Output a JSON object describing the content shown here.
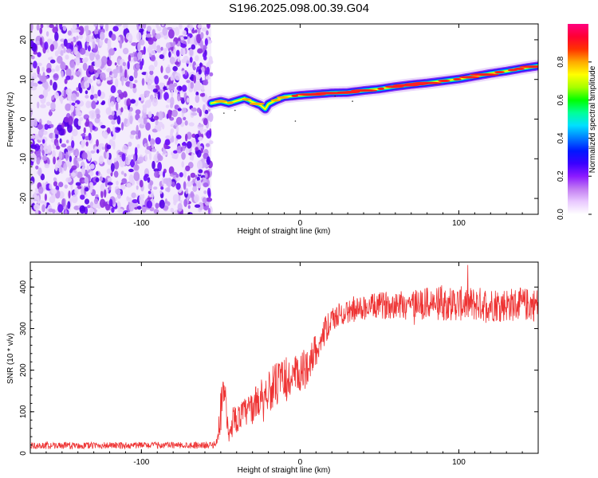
{
  "title": "S196.2025.098.00.39.G04",
  "chart_data": [
    {
      "type": "heatmap",
      "xlabel": "Height of straight line (km)",
      "ylabel": "Frequency (Hz)",
      "xlim": [
        -170,
        150
      ],
      "ylim": [
        -24,
        24
      ],
      "xticks": [
        -100,
        0,
        100
      ],
      "xtick_labels": [
        "-100",
        "0",
        "100"
      ],
      "yticks": [
        -20,
        -10,
        0,
        10,
        20
      ],
      "ytick_labels": [
        "-20",
        "-10",
        "0",
        "10",
        "20"
      ],
      "noise_region_x": [
        -170,
        -56
      ],
      "ridge": {
        "x": [
          -56,
          -50,
          -45,
          -40,
          -35,
          -30,
          -25,
          -22,
          -20,
          -15,
          -10,
          -5,
          0,
          10,
          20,
          30,
          40,
          50,
          60,
          70,
          80,
          90,
          100,
          110,
          120,
          130,
          140,
          150
        ],
        "y": [
          4.0,
          4.5,
          4.0,
          4.6,
          5.2,
          4.3,
          3.5,
          2.5,
          3.8,
          4.8,
          5.6,
          5.8,
          6.0,
          6.3,
          6.6,
          6.7,
          7.2,
          7.6,
          8.2,
          8.7,
          9.1,
          9.6,
          10.1,
          10.8,
          11.5,
          12.1,
          12.8,
          13.4
        ]
      },
      "colorbar": {
        "label": "Normalized spectral amplitude",
        "ticks": [
          0.0,
          0.2,
          0.4,
          0.6,
          0.8
        ],
        "tick_labels": [
          "0.0",
          "0.2",
          "0.4",
          "0.6",
          "0.8"
        ],
        "range": [
          0,
          1
        ],
        "colormap": [
          "#ffffff",
          "#e9c9ff",
          "#c27cf2",
          "#8c1aff",
          "#3a00ff",
          "#0018ff",
          "#007cff",
          "#00e0ff",
          "#00ff99",
          "#00ff00",
          "#a6ff00",
          "#ffff00",
          "#ffaa00",
          "#ff3300",
          "#ff0033",
          "#ff007f"
        ]
      }
    },
    {
      "type": "line",
      "xlabel": "Height of straight line (km)",
      "ylabel": "SNR (10 * v/v)",
      "xlim": [
        -170,
        150
      ],
      "ylim": [
        0,
        460
      ],
      "xticks": [
        -100,
        0,
        100
      ],
      "xtick_labels": [
        "-100",
        "0",
        "100"
      ],
      "yticks": [
        0,
        100,
        200,
        300,
        400
      ],
      "ytick_labels": [
        "0",
        "100",
        "200",
        "300",
        "400"
      ],
      "color": "#ee3333",
      "trend": {
        "x": [
          -170,
          -55,
          -52,
          -50,
          -48,
          -46,
          -44,
          -42,
          -40,
          -36,
          -30,
          -25,
          -20,
          -15,
          -10,
          -5,
          0,
          5,
          10,
          15,
          20,
          25,
          30,
          40,
          50,
          60,
          80,
          100,
          120,
          150
        ],
        "y": [
          18,
          20,
          30,
          110,
          160,
          60,
          35,
          90,
          80,
          95,
          110,
          135,
          150,
          165,
          175,
          180,
          185,
          215,
          250,
          290,
          320,
          335,
          340,
          350,
          355,
          360,
          360,
          360,
          358,
          358
        ],
        "spread": [
          8,
          8,
          10,
          60,
          70,
          35,
          25,
          35,
          30,
          35,
          40,
          45,
          50,
          55,
          55,
          55,
          55,
          45,
          40,
          35,
          30,
          28,
          28,
          30,
          32,
          35,
          40,
          42,
          42,
          40
        ]
      }
    }
  ]
}
